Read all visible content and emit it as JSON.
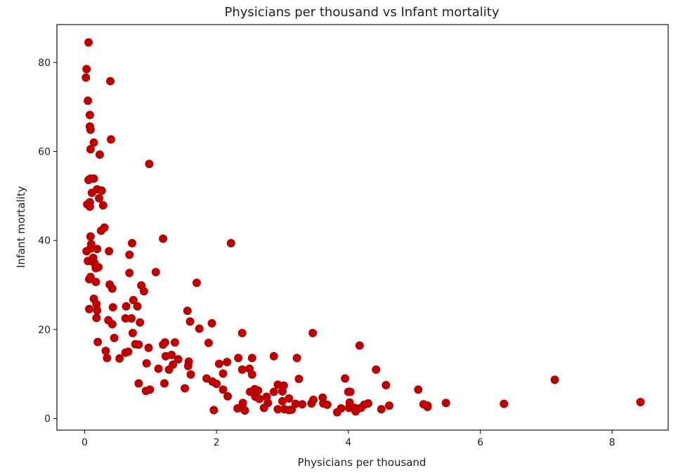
{
  "chart_data": {
    "type": "scatter",
    "title": "Physicians per thousand vs Infant mortality",
    "xlabel": "Physicians per thousand",
    "ylabel": "Infant mortality",
    "xlim": [
      -0.42,
      8.85
    ],
    "ylim": [
      -2.6,
      88.5
    ],
    "xticks": [
      0,
      2,
      4,
      6,
      8
    ],
    "yticks": [
      0,
      20,
      40,
      60,
      80
    ],
    "grid": false,
    "marker_color": "#bb0000",
    "points": [
      [
        0.06,
        84.5
      ],
      [
        0.03,
        78.5
      ],
      [
        0.02,
        76.6
      ],
      [
        0.39,
        75.8
      ],
      [
        0.05,
        71.4
      ],
      [
        0.08,
        68.2
      ],
      [
        0.08,
        65.6
      ],
      [
        0.09,
        64.9
      ],
      [
        0.4,
        62.7
      ],
      [
        0.14,
        62.0
      ],
      [
        0.09,
        60.5
      ],
      [
        0.23,
        59.3
      ],
      [
        0.98,
        57.2
      ],
      [
        0.06,
        53.6
      ],
      [
        0.09,
        53.9
      ],
      [
        0.14,
        53.9
      ],
      [
        0.11,
        50.7
      ],
      [
        0.19,
        51.5
      ],
      [
        0.26,
        51.2
      ],
      [
        0.22,
        49.5
      ],
      [
        0.04,
        48.1
      ],
      [
        0.08,
        48.6
      ],
      [
        0.08,
        47.6
      ],
      [
        0.28,
        47.9
      ],
      [
        0.3,
        42.9
      ],
      [
        0.25,
        42.2
      ],
      [
        1.19,
        40.4
      ],
      [
        0.09,
        40.9
      ],
      [
        0.72,
        39.4
      ],
      [
        2.22,
        39.4
      ],
      [
        0.1,
        39.2
      ],
      [
        0.09,
        38.2
      ],
      [
        0.19,
        38.1
      ],
      [
        0.03,
        37.6
      ],
      [
        0.37,
        37.6
      ],
      [
        0.68,
        36.8
      ],
      [
        0.13,
        36.1
      ],
      [
        0.1,
        35.4
      ],
      [
        0.05,
        35.4
      ],
      [
        0.15,
        34.9
      ],
      [
        0.21,
        34.0
      ],
      [
        0.17,
        33.8
      ],
      [
        0.68,
        32.7
      ],
      [
        1.08,
        32.9
      ],
      [
        0.09,
        31.8
      ],
      [
        0.07,
        31.3
      ],
      [
        0.17,
        30.7
      ],
      [
        0.38,
        30.1
      ],
      [
        1.7,
        30.5
      ],
      [
        0.86,
        29.9
      ],
      [
        0.42,
        29.2
      ],
      [
        0.9,
        28.6
      ],
      [
        0.14,
        26.9
      ],
      [
        0.74,
        26.6
      ],
      [
        0.18,
        25.7
      ],
      [
        0.63,
        25.2
      ],
      [
        0.8,
        25.2
      ],
      [
        0.43,
        25.0
      ],
      [
        0.07,
        24.6
      ],
      [
        0.19,
        24.3
      ],
      [
        1.56,
        24.2
      ],
      [
        0.18,
        22.6
      ],
      [
        0.36,
        22.1
      ],
      [
        0.62,
        22.5
      ],
      [
        0.71,
        22.5
      ],
      [
        0.84,
        21.6
      ],
      [
        1.6,
        21.8
      ],
      [
        1.93,
        21.4
      ],
      [
        0.42,
        21.2
      ],
      [
        1.74,
        20.2
      ],
      [
        3.46,
        19.2
      ],
      [
        0.73,
        19.2
      ],
      [
        2.39,
        19.2
      ],
      [
        0.45,
        18.1
      ],
      [
        0.2,
        17.2
      ],
      [
        1.22,
        17.1
      ],
      [
        1.88,
        17.0
      ],
      [
        0.77,
        16.7
      ],
      [
        1.19,
        16.6
      ],
      [
        1.37,
        17.1
      ],
      [
        4.17,
        16.4
      ],
      [
        0.82,
        16.6
      ],
      [
        0.97,
        15.9
      ],
      [
        0.32,
        15.2
      ],
      [
        0.66,
        15.0
      ],
      [
        0.62,
        14.8
      ],
      [
        1.32,
        14.3
      ],
      [
        1.23,
        14.0
      ],
      [
        2.87,
        14.0
      ],
      [
        3.22,
        13.6
      ],
      [
        0.34,
        13.6
      ],
      [
        0.53,
        13.5
      ],
      [
        2.54,
        13.6
      ],
      [
        2.33,
        13.6
      ],
      [
        1.42,
        13.3
      ],
      [
        1.58,
        12.8
      ],
      [
        2.16,
        12.7
      ],
      [
        2.04,
        12.3
      ],
      [
        1.34,
        12.1
      ],
      [
        0.94,
        12.4
      ],
      [
        1.57,
        11.8
      ],
      [
        2.5,
        11.2
      ],
      [
        2.39,
        11.0
      ],
      [
        1.12,
        11.2
      ],
      [
        1.28,
        11.0
      ],
      [
        4.42,
        11.0
      ],
      [
        2.1,
        10.1
      ],
      [
        1.61,
        9.9
      ],
      [
        2.54,
        9.9
      ],
      [
        3.95,
        9.0
      ],
      [
        1.85,
        9.0
      ],
      [
        3.25,
        8.9
      ],
      [
        7.13,
        8.7
      ],
      [
        1.94,
        8.3
      ],
      [
        2.0,
        7.8
      ],
      [
        1.21,
        7.9
      ],
      [
        0.82,
        7.9
      ],
      [
        2.93,
        7.6
      ],
      [
        3.02,
        7.4
      ],
      [
        4.57,
        7.5
      ],
      [
        1.52,
        6.8
      ],
      [
        2.1,
        6.5
      ],
      [
        0.99,
        6.5
      ],
      [
        0.93,
        6.2
      ],
      [
        5.06,
        6.5
      ],
      [
        2.58,
        6.6
      ],
      [
        2.63,
        6.3
      ],
      [
        2.51,
        6.0
      ],
      [
        2.87,
        6.0
      ],
      [
        3.0,
        6.1
      ],
      [
        4.0,
        6.0
      ],
      [
        4.03,
        6.0
      ],
      [
        2.17,
        5.0
      ],
      [
        2.59,
        4.9
      ],
      [
        2.76,
        4.9
      ],
      [
        3.1,
        4.5
      ],
      [
        3.61,
        4.7
      ],
      [
        2.65,
        4.4
      ],
      [
        3.0,
        3.9
      ],
      [
        3.47,
        4.2
      ],
      [
        2.4,
        3.5
      ],
      [
        2.78,
        3.5
      ],
      [
        3.2,
        3.3
      ],
      [
        3.3,
        3.2
      ],
      [
        3.44,
        3.4
      ],
      [
        3.62,
        3.4
      ],
      [
        3.68,
        3.1
      ],
      [
        4.02,
        3.6
      ],
      [
        4.3,
        3.4
      ],
      [
        4.24,
        3.1
      ],
      [
        5.14,
        3.2
      ],
      [
        5.2,
        2.9
      ],
      [
        5.48,
        3.5
      ],
      [
        6.36,
        3.3
      ],
      [
        8.43,
        3.7
      ],
      [
        2.32,
        2.3
      ],
      [
        2.4,
        2.3
      ],
      [
        2.72,
        2.4
      ],
      [
        2.93,
        2.1
      ],
      [
        3.03,
        2.1
      ],
      [
        3.14,
        2.0
      ],
      [
        3.89,
        2.3
      ],
      [
        4.01,
        2.4
      ],
      [
        4.1,
        2.4
      ],
      [
        4.62,
        2.9
      ],
      [
        4.5,
        2.1
      ],
      [
        1.96,
        1.9
      ],
      [
        2.43,
        1.8
      ],
      [
        3.1,
        1.9
      ],
      [
        3.83,
        1.4
      ],
      [
        4.11,
        1.6
      ],
      [
        4.19,
        2.4
      ],
      [
        5.2,
        2.6
      ]
    ]
  }
}
